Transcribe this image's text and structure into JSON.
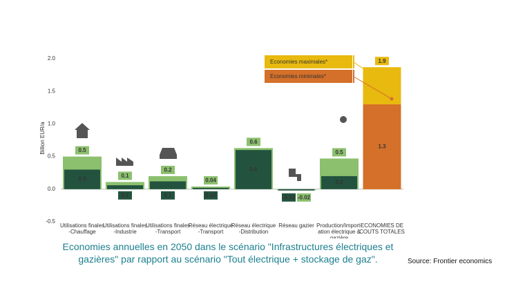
{
  "chart_data": {
    "type": "bar",
    "y_label": "Billion EUR/a",
    "ylim": [
      -0.5,
      2.0
    ],
    "yticks": [
      -0.5,
      {
        "value": 0,
        "label": "0.0"
      },
      0.5,
      {
        "value": 1,
        "label": "1.0"
      },
      1.5,
      {
        "value": 2,
        "label": "2.0"
      }
    ],
    "categories": [
      [
        "Utilisations finales",
        "-Chauffage"
      ],
      [
        "Utilisations finales",
        "-Industrie"
      ],
      [
        "Utilisations finales",
        "-Transport"
      ],
      [
        "Réseau électrique",
        "-Transport"
      ],
      [
        "Réseau électrique",
        "-Distribution"
      ],
      [
        "Réseau gazier"
      ],
      [
        "Production/Import-",
        "ation électrique &",
        "gazière"
      ],
      [
        "ECONOMIES DE",
        "COUTS TOTALES"
      ]
    ],
    "series": [
      {
        "name": "Economies maximales*",
        "color": "#e8b90e",
        "component_color": "#8cc06e",
        "values": [
          0.5,
          0.11,
          0.2,
          0.04,
          0.63,
          -0.02,
          0.47,
          1.87
        ],
        "value_labels": [
          "0.5",
          "0.1",
          "0.2",
          "0.04",
          "0.6",
          "-0.02",
          "0.5",
          "1.9"
        ]
      },
      {
        "name": "Economies minimales*",
        "color": "#d4702a",
        "component_color": "#23533f",
        "values": [
          0.3,
          0.06,
          0.12,
          0.02,
          0.6,
          -0.02,
          0.2,
          1.3
        ],
        "value_labels": [
          "0.3",
          "0.1",
          "0.1",
          "0.02",
          "0.6",
          "-0.02",
          "0.2",
          "1.3"
        ]
      }
    ],
    "caption": "Economies annuelles en 2050 dans le scénario \"Infrastructures électriques et gazières\" par rapport au scénario \"Tout électrique + stockage de gaz\".",
    "source": "Source: Frontier economics"
  }
}
